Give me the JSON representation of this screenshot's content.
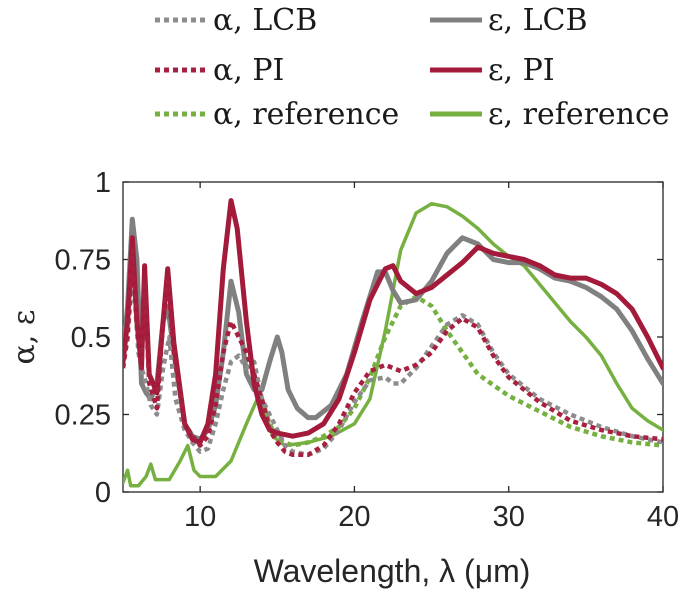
{
  "chart_data": {
    "type": "line",
    "xlabel": "Wavelength, λ (μm)",
    "ylabel": "α, ε",
    "xlim": [
      5,
      40
    ],
    "ylim": [
      0,
      1
    ],
    "xticks": [
      10,
      20,
      30,
      40
    ],
    "xtick_labels": [
      "10",
      "20",
      "30",
      "40"
    ],
    "yticks": [
      0,
      0.25,
      0.5,
      0.75,
      1
    ],
    "ytick_labels": [
      "0",
      "0.25",
      "0.5",
      "0.75",
      "1"
    ],
    "legend_location": "above-plot",
    "series": [
      {
        "name": "α, LCB",
        "style": "dotted",
        "color": "#8c8c8c",
        "points": [
          [
            5,
            0.4
          ],
          [
            5.3,
            0.5
          ],
          [
            5.6,
            0.7
          ],
          [
            5.8,
            0.6
          ],
          [
            6.0,
            0.45
          ],
          [
            6.2,
            0.4
          ],
          [
            6.5,
            0.35
          ],
          [
            6.8,
            0.28
          ],
          [
            7.2,
            0.25
          ],
          [
            7.6,
            0.4
          ],
          [
            8.0,
            0.5
          ],
          [
            8.4,
            0.3
          ],
          [
            9,
            0.2
          ],
          [
            9.5,
            0.16
          ],
          [
            10,
            0.13
          ],
          [
            10.5,
            0.14
          ],
          [
            11,
            0.22
          ],
          [
            11.5,
            0.33
          ],
          [
            12,
            0.42
          ],
          [
            12.5,
            0.44
          ],
          [
            13,
            0.4
          ],
          [
            13.5,
            0.42
          ],
          [
            14,
            0.3
          ],
          [
            14.5,
            0.25
          ],
          [
            15,
            0.2
          ],
          [
            15.5,
            0.15
          ],
          [
            16,
            0.13
          ],
          [
            17,
            0.12
          ],
          [
            18,
            0.14
          ],
          [
            19,
            0.2
          ],
          [
            20,
            0.29
          ],
          [
            21,
            0.36
          ],
          [
            22,
            0.37
          ],
          [
            22.5,
            0.35
          ],
          [
            23,
            0.35
          ],
          [
            24,
            0.4
          ],
          [
            25,
            0.47
          ],
          [
            26,
            0.54
          ],
          [
            27,
            0.57
          ],
          [
            28,
            0.54
          ],
          [
            29,
            0.45
          ],
          [
            30,
            0.38
          ],
          [
            32,
            0.3
          ],
          [
            34,
            0.25
          ],
          [
            36,
            0.21
          ],
          [
            38,
            0.18
          ],
          [
            40,
            0.16
          ]
        ]
      },
      {
        "name": "ε, LCB",
        "style": "solid",
        "color": "#808080",
        "points": [
          [
            5,
            0.45
          ],
          [
            5.3,
            0.6
          ],
          [
            5.6,
            0.88
          ],
          [
            5.9,
            0.75
          ],
          [
            6.2,
            0.35
          ],
          [
            6.5,
            0.32
          ],
          [
            6.8,
            0.3
          ],
          [
            7.2,
            0.35
          ],
          [
            7.6,
            0.55
          ],
          [
            7.9,
            0.6
          ],
          [
            8.3,
            0.45
          ],
          [
            9,
            0.22
          ],
          [
            9.5,
            0.18
          ],
          [
            10,
            0.17
          ],
          [
            10.5,
            0.2
          ],
          [
            11,
            0.28
          ],
          [
            11.5,
            0.45
          ],
          [
            12,
            0.68
          ],
          [
            12.5,
            0.58
          ],
          [
            13,
            0.38
          ],
          [
            13.5,
            0.33
          ],
          [
            14,
            0.33
          ],
          [
            14.5,
            0.42
          ],
          [
            15,
            0.5
          ],
          [
            15.3,
            0.45
          ],
          [
            15.7,
            0.33
          ],
          [
            16.3,
            0.27
          ],
          [
            17,
            0.24
          ],
          [
            17.5,
            0.24
          ],
          [
            18.5,
            0.28
          ],
          [
            19.5,
            0.38
          ],
          [
            20.5,
            0.55
          ],
          [
            21.5,
            0.71
          ],
          [
            22,
            0.71
          ],
          [
            22.5,
            0.65
          ],
          [
            23,
            0.61
          ],
          [
            24,
            0.62
          ],
          [
            25,
            0.68
          ],
          [
            26,
            0.77
          ],
          [
            27,
            0.82
          ],
          [
            28,
            0.8
          ],
          [
            29,
            0.75
          ],
          [
            30,
            0.74
          ],
          [
            31,
            0.74
          ],
          [
            32,
            0.72
          ],
          [
            33,
            0.69
          ],
          [
            34,
            0.68
          ],
          [
            35,
            0.66
          ],
          [
            36,
            0.63
          ],
          [
            37,
            0.59
          ],
          [
            38,
            0.52
          ],
          [
            39,
            0.43
          ],
          [
            40,
            0.35
          ]
        ]
      },
      {
        "name": "α, PI",
        "style": "dotted",
        "color": "#a8203f",
        "points": [
          [
            5,
            0.4
          ],
          [
            5.3,
            0.5
          ],
          [
            5.6,
            0.78
          ],
          [
            5.9,
            0.55
          ],
          [
            6.2,
            0.4
          ],
          [
            6.4,
            0.68
          ],
          [
            6.7,
            0.35
          ],
          [
            7.2,
            0.27
          ],
          [
            7.6,
            0.55
          ],
          [
            7.9,
            0.68
          ],
          [
            8.3,
            0.45
          ],
          [
            9,
            0.22
          ],
          [
            9.5,
            0.18
          ],
          [
            10,
            0.15
          ],
          [
            10.5,
            0.18
          ],
          [
            11,
            0.28
          ],
          [
            11.5,
            0.45
          ],
          [
            12,
            0.55
          ],
          [
            12.5,
            0.5
          ],
          [
            13,
            0.45
          ],
          [
            13.5,
            0.38
          ],
          [
            14,
            0.3
          ],
          [
            14.5,
            0.2
          ],
          [
            15,
            0.16
          ],
          [
            15.5,
            0.13
          ],
          [
            16,
            0.12
          ],
          [
            17,
            0.12
          ],
          [
            18,
            0.15
          ],
          [
            19,
            0.22
          ],
          [
            20,
            0.32
          ],
          [
            21,
            0.39
          ],
          [
            22,
            0.41
          ],
          [
            23,
            0.39
          ],
          [
            24,
            0.41
          ],
          [
            25,
            0.45
          ],
          [
            26,
            0.52
          ],
          [
            27,
            0.56
          ],
          [
            28,
            0.53
          ],
          [
            29,
            0.44
          ],
          [
            30,
            0.37
          ],
          [
            32,
            0.29
          ],
          [
            34,
            0.23
          ],
          [
            36,
            0.2
          ],
          [
            38,
            0.18
          ],
          [
            40,
            0.17
          ]
        ]
      },
      {
        "name": "ε, PI",
        "style": "solid",
        "color": "#a31a3a",
        "points": [
          [
            5,
            0.42
          ],
          [
            5.3,
            0.55
          ],
          [
            5.6,
            0.82
          ],
          [
            5.9,
            0.55
          ],
          [
            6.2,
            0.4
          ],
          [
            6.4,
            0.73
          ],
          [
            6.7,
            0.38
          ],
          [
            7.2,
            0.32
          ],
          [
            7.6,
            0.55
          ],
          [
            7.9,
            0.72
          ],
          [
            8.3,
            0.48
          ],
          [
            9,
            0.22
          ],
          [
            9.5,
            0.17
          ],
          [
            10,
            0.16
          ],
          [
            10.5,
            0.22
          ],
          [
            11,
            0.38
          ],
          [
            11.5,
            0.72
          ],
          [
            12,
            0.94
          ],
          [
            12.4,
            0.85
          ],
          [
            13,
            0.55
          ],
          [
            13.5,
            0.35
          ],
          [
            14,
            0.25
          ],
          [
            14.5,
            0.2
          ],
          [
            15,
            0.19
          ],
          [
            16,
            0.18
          ],
          [
            17,
            0.19
          ],
          [
            18,
            0.22
          ],
          [
            19,
            0.3
          ],
          [
            20,
            0.45
          ],
          [
            21,
            0.62
          ],
          [
            22,
            0.72
          ],
          [
            22.5,
            0.73
          ],
          [
            23,
            0.68
          ],
          [
            24,
            0.64
          ],
          [
            25,
            0.66
          ],
          [
            26,
            0.7
          ],
          [
            27,
            0.74
          ],
          [
            28,
            0.79
          ],
          [
            29,
            0.77
          ],
          [
            30,
            0.76
          ],
          [
            31,
            0.75
          ],
          [
            32,
            0.73
          ],
          [
            33,
            0.7
          ],
          [
            34,
            0.69
          ],
          [
            35,
            0.69
          ],
          [
            36,
            0.67
          ],
          [
            37,
            0.64
          ],
          [
            38,
            0.59
          ],
          [
            39,
            0.5
          ],
          [
            40,
            0.4
          ]
        ]
      },
      {
        "name": "α, reference",
        "style": "dotted",
        "color": "#76b041",
        "points": [
          [
            14,
            0.3
          ],
          [
            14.5,
            0.22
          ],
          [
            15,
            0.17
          ],
          [
            16,
            0.15
          ],
          [
            17,
            0.16
          ],
          [
            18,
            0.18
          ],
          [
            19,
            0.21
          ],
          [
            20,
            0.27
          ],
          [
            21,
            0.37
          ],
          [
            22,
            0.5
          ],
          [
            23,
            0.6
          ],
          [
            24,
            0.63
          ],
          [
            25,
            0.6
          ],
          [
            26,
            0.52
          ],
          [
            27,
            0.45
          ],
          [
            28,
            0.38
          ],
          [
            30,
            0.31
          ],
          [
            32,
            0.26
          ],
          [
            34,
            0.21
          ],
          [
            36,
            0.18
          ],
          [
            38,
            0.16
          ],
          [
            40,
            0.15
          ]
        ]
      },
      {
        "name": "ε, reference",
        "style": "solid",
        "color": "#76b041",
        "points": [
          [
            5,
            0.03
          ],
          [
            5.3,
            0.07
          ],
          [
            5.5,
            0.02
          ],
          [
            6,
            0.02
          ],
          [
            6.5,
            0.05
          ],
          [
            6.8,
            0.09
          ],
          [
            7.1,
            0.04
          ],
          [
            8,
            0.04
          ],
          [
            8.7,
            0.1
          ],
          [
            9.2,
            0.15
          ],
          [
            9.6,
            0.07
          ],
          [
            10,
            0.05
          ],
          [
            11,
            0.05
          ],
          [
            12,
            0.1
          ],
          [
            13,
            0.22
          ],
          [
            13.7,
            0.3
          ],
          [
            14.2,
            0.26
          ],
          [
            14.7,
            0.18
          ],
          [
            15.5,
            0.15
          ],
          [
            17,
            0.16
          ],
          [
            18.5,
            0.18
          ],
          [
            20,
            0.22
          ],
          [
            21,
            0.3
          ],
          [
            22,
            0.52
          ],
          [
            23,
            0.78
          ],
          [
            24,
            0.9
          ],
          [
            25,
            0.93
          ],
          [
            26,
            0.92
          ],
          [
            27,
            0.89
          ],
          [
            28,
            0.85
          ],
          [
            29,
            0.8
          ],
          [
            30,
            0.76
          ],
          [
            31,
            0.73
          ],
          [
            32,
            0.67
          ],
          [
            33,
            0.61
          ],
          [
            34,
            0.55
          ],
          [
            35,
            0.5
          ],
          [
            36,
            0.44
          ],
          [
            37,
            0.35
          ],
          [
            38,
            0.27
          ],
          [
            39,
            0.23
          ],
          [
            40,
            0.2
          ]
        ]
      }
    ]
  }
}
